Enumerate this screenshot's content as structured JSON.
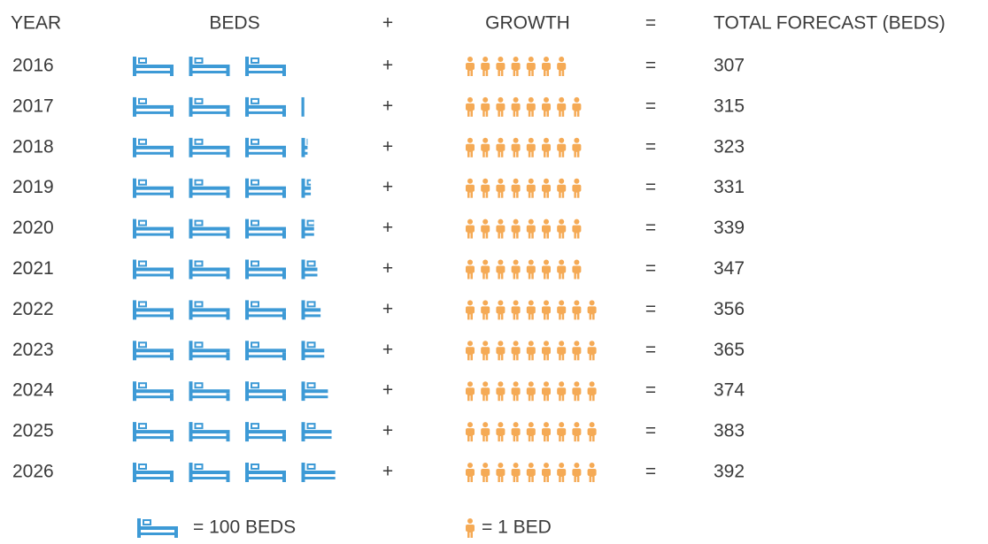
{
  "chart_data": {
    "type": "pictograph",
    "header": {
      "year": "YEAR",
      "plus": "+",
      "equals": "=",
      "total": "TOTAL FORECAST (BEDS)"
    },
    "categories": [
      "2016",
      "2017",
      "2018",
      "2019",
      "2020",
      "2021",
      "2022",
      "2023",
      "2024",
      "2025",
      "2026"
    ],
    "series": [
      {
        "name": "BEDS",
        "color": "#3d9ad6",
        "values": [
          300,
          307,
          315,
          323,
          331,
          339,
          347,
          356,
          365,
          374,
          383
        ]
      },
      {
        "name": "GROWTH",
        "color": "#f5aa55",
        "values": [
          7,
          8,
          8,
          8,
          8,
          8,
          9,
          9,
          9,
          9,
          9
        ]
      }
    ],
    "totals": [
      307,
      315,
      323,
      331,
      339,
      347,
      356,
      365,
      374,
      383,
      392
    ],
    "legend": [
      {
        "value": 100,
        "label": "= 100 BEDS"
      },
      {
        "value": 1,
        "label": "= 1 BED"
      }
    ]
  }
}
